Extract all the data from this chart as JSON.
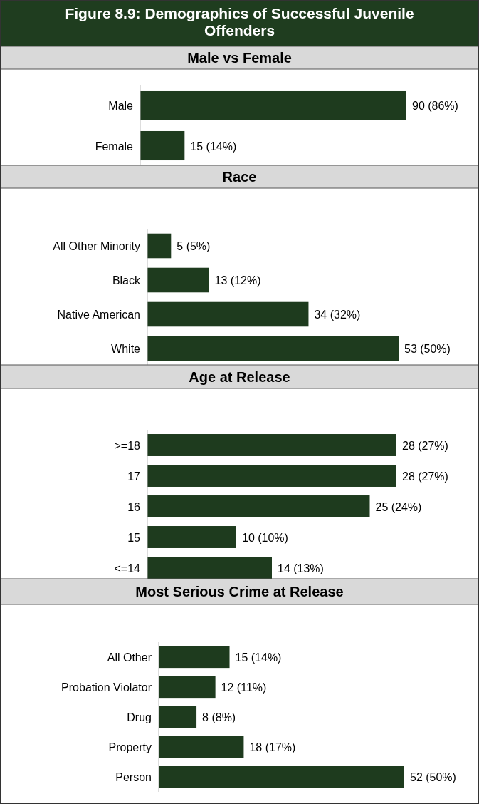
{
  "chart_data": [
    {
      "type": "bar",
      "orientation": "horizontal",
      "title": "Figure 8.9: Demographics of Successful Juvenile Offenders",
      "subtitle": "Male vs Female",
      "categories": [
        "Male",
        "Female"
      ],
      "values": [
        90,
        15
      ],
      "value_labels": [
        "90 (86%)",
        "15 (14%)"
      ],
      "color": "#1e3b1e"
    },
    {
      "type": "bar",
      "orientation": "horizontal",
      "title": "Race",
      "categories": [
        "All Other Minority",
        "Black",
        "Native American",
        "White"
      ],
      "values": [
        5,
        13,
        34,
        53
      ],
      "value_labels": [
        "5 (5%)",
        "13 (12%)",
        "34 (32%)",
        "53 (50%)"
      ],
      "color": "#1e3b1e"
    },
    {
      "type": "bar",
      "orientation": "horizontal",
      "title": "Age at Release",
      "categories": [
        ">=18",
        "17",
        "16",
        "15",
        "<=14"
      ],
      "values": [
        28,
        28,
        25,
        10,
        14
      ],
      "value_labels": [
        "28 (27%)",
        "28 (27%)",
        "25 (24%)",
        "10 (10%)",
        "14 (13%)"
      ],
      "color": "#1e3b1e"
    },
    {
      "type": "bar",
      "orientation": "horizontal",
      "title": "Most Serious Crime at Release",
      "categories": [
        "All Other",
        "Probation Violator",
        "Drug",
        "Property",
        "Person"
      ],
      "values": [
        15,
        12,
        8,
        18,
        52
      ],
      "value_labels": [
        "15 (14%)",
        "12 (11%)",
        "8 (8%)",
        "18 (17%)",
        "52 (50%)"
      ],
      "color": "#1e3b1e"
    }
  ]
}
